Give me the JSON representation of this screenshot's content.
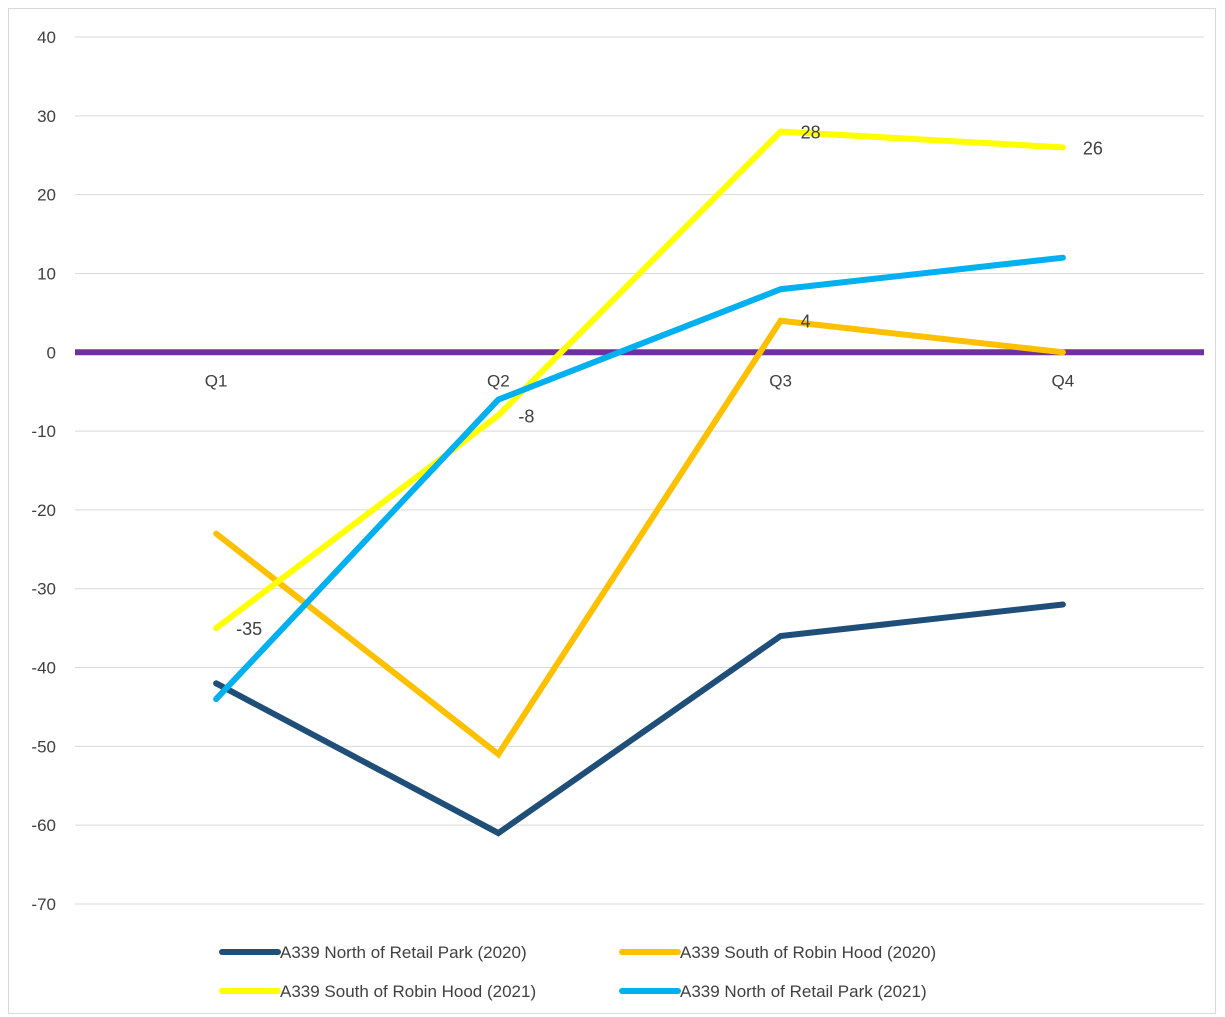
{
  "chart_data": {
    "type": "line",
    "title": "",
    "xlabel": "",
    "ylabel": "",
    "categories": [
      "Q1",
      "Q2",
      "Q3",
      "Q4"
    ],
    "ylim": [
      -70,
      40
    ],
    "yticks": [
      40,
      30,
      20,
      10,
      0,
      -10,
      -20,
      -30,
      -40,
      -50,
      -60,
      -70
    ],
    "grid": true,
    "legend_position": "bottom",
    "baseline": {
      "value": 0,
      "color": "#7030A0"
    },
    "series": [
      {
        "name": "A339 North of Retail Park (2020)",
        "color": "#1F4E79",
        "values": [
          -42,
          -61,
          -36,
          -32
        ],
        "labels": [
          null,
          null,
          null,
          null
        ]
      },
      {
        "name": "A339 South of Robin Hood (2020)",
        "color": "#FFC000",
        "values": [
          -23,
          -51,
          4,
          0
        ],
        "labels": [
          null,
          null,
          "4",
          null
        ]
      },
      {
        "name": "A339 South of Robin Hood (2021)",
        "color": "#FFFF00",
        "values": [
          -35,
          -8,
          28,
          26
        ],
        "labels": [
          "-35",
          "-8",
          "28",
          "26"
        ]
      },
      {
        "name": "A339 North of Retail Park (2021)",
        "color": "#00B0F0",
        "values": [
          -44,
          -6,
          8,
          12
        ],
        "labels": [
          null,
          null,
          null,
          null
        ]
      }
    ]
  }
}
